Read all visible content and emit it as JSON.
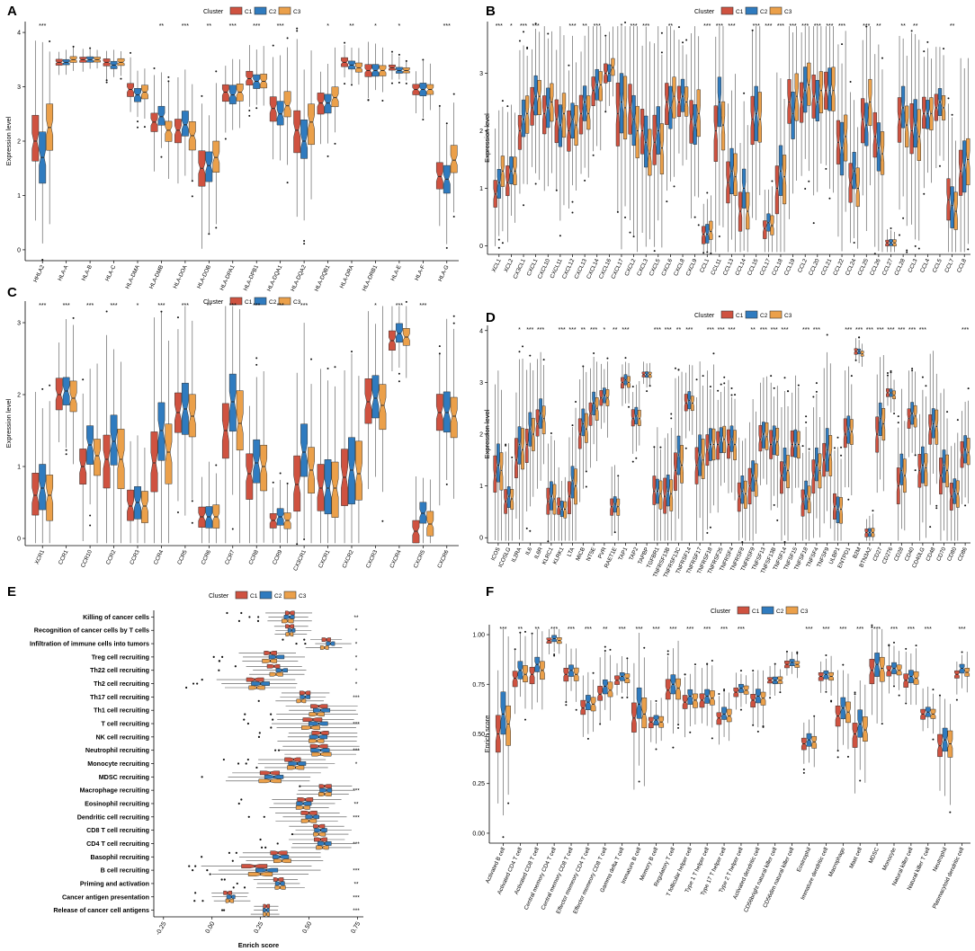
{
  "colors": {
    "C1": "#cf5240",
    "C2": "#2f7bbf",
    "C3": "#eba04a",
    "axis": "#000000",
    "whisker": "#4d4d4d",
    "outlier": "#111111"
  },
  "legend": {
    "title": "Cluster",
    "items": [
      "C1",
      "C2",
      "C3"
    ]
  },
  "chart_data": [
    {
      "letter": "A",
      "type": "boxplot",
      "orientation": "vertical",
      "ylabel": "Expression level",
      "ylim": [
        -0.2,
        4.2
      ],
      "yticks": [
        0,
        1,
        2,
        3,
        4
      ],
      "categories": [
        "HHLA2",
        "HLA-A",
        "HLA-B",
        "HLA-C",
        "HLA-DMA",
        "HLA-DMB",
        "HLA-DOA",
        "HLA-DOB",
        "HLA-DPA1",
        "HLA-DPB1",
        "HLA-DQA1",
        "HLA-DQA2",
        "HLA-DQB1",
        "HLA-DRA",
        "HLA-DRB1",
        "HLA-E",
        "HLA-F",
        "HLA-G"
      ],
      "significance": [
        "***",
        "",
        "",
        "",
        "",
        "**",
        "***",
        "**",
        "***",
        "***",
        "***",
        "",
        "*",
        "**",
        "*",
        "*",
        "",
        "***"
      ],
      "medians": {
        "C1": [
          2.0,
          3.45,
          3.5,
          3.45,
          2.95,
          2.35,
          2.2,
          1.5,
          2.9,
          3.15,
          2.6,
          2.2,
          2.7,
          3.45,
          3.3,
          3.35,
          2.95,
          1.35
        ],
        "C2": [
          1.7,
          3.45,
          3.5,
          3.4,
          2.85,
          2.45,
          2.3,
          1.55,
          2.85,
          3.1,
          2.5,
          2.0,
          2.7,
          3.4,
          3.3,
          3.3,
          2.95,
          1.3
        ],
        "C3": [
          2.25,
          3.5,
          3.5,
          3.45,
          2.9,
          2.2,
          2.1,
          1.7,
          2.9,
          3.1,
          2.65,
          2.35,
          2.8,
          3.35,
          3.3,
          3.3,
          2.95,
          1.65
        ]
      },
      "iqr": [
        0.8,
        0.1,
        0.1,
        0.12,
        0.25,
        0.35,
        0.45,
        0.55,
        0.3,
        0.25,
        0.45,
        0.7,
        0.35,
        0.15,
        0.2,
        0.1,
        0.2,
        0.5
      ]
    },
    {
      "letter": "B",
      "type": "boxplot",
      "orientation": "vertical",
      "ylabel": "Expression level",
      "ylim": [
        -0.15,
        3.9
      ],
      "yticks": [
        0,
        1,
        2,
        3
      ],
      "categories": [
        "XCL1",
        "XCL2",
        "CX3CL1",
        "CXCL1",
        "CXCL10",
        "CXCL11",
        "CXCL12",
        "CXCL13",
        "CXCL14",
        "CXCL16",
        "CXCL17",
        "CXCL2",
        "CXCL3",
        "CXCL5",
        "CXCL6",
        "CXCL8",
        "CXCL9",
        "CCL1",
        "CCL11",
        "CCL13",
        "CCL14",
        "CCL15",
        "CCL17",
        "CCL18",
        "CCL19",
        "CCL2",
        "CCL20",
        "CCL21",
        "CCL22",
        "CCL24",
        "CCL25",
        "CCL26",
        "CCL27",
        "CCL28",
        "CCL3",
        "CCL4",
        "CCL5",
        "CCL7",
        "CCL8"
      ],
      "significance": [
        "***",
        "*",
        "***",
        "***",
        "",
        "",
        "***",
        "**",
        "***",
        "",
        "*",
        "***",
        "***",
        "",
        "**",
        "",
        "",
        "***",
        "***",
        "***",
        "",
        "***",
        "***",
        "***",
        "***",
        "***",
        "***",
        "***",
        "***",
        "",
        "***",
        "**",
        "",
        "**",
        "**",
        "",
        "",
        "**",
        ""
      ],
      "medians": {
        "C1": [
          0.9,
          1.1,
          2.0,
          2.4,
          2.3,
          2.2,
          2.0,
          2.3,
          2.7,
          3.0,
          2.3,
          2.4,
          2.0,
          1.8,
          2.5,
          2.5,
          2.2,
          0.2,
          2.0,
          1.1,
          0.6,
          2.2,
          0.3,
          1.0,
          2.5,
          2.5,
          2.6,
          2.7,
          1.8,
          1.1,
          2.2,
          1.9,
          0.05,
          2.2,
          2.0,
          2.3,
          2.4,
          0.8,
          1.3
        ],
        "C2": [
          1.1,
          1.3,
          2.2,
          2.6,
          2.4,
          2.1,
          2.2,
          2.5,
          2.8,
          3.0,
          2.5,
          2.2,
          1.8,
          2.0,
          2.4,
          2.6,
          2.1,
          0.2,
          2.5,
          1.3,
          1.0,
          2.3,
          0.4,
          1.3,
          2.3,
          2.7,
          2.5,
          2.7,
          1.7,
          1.3,
          2.1,
          1.7,
          0.05,
          2.4,
          2.1,
          2.3,
          2.5,
          0.7,
          1.4
        ],
        "C3": [
          1.3,
          1.3,
          2.3,
          2.6,
          2.5,
          2.3,
          2.1,
          2.3,
          2.8,
          3.1,
          2.4,
          2.0,
          1.6,
          1.7,
          2.6,
          2.5,
          2.3,
          0.25,
          2.1,
          1.2,
          0.6,
          2.2,
          0.35,
          1.2,
          2.6,
          2.8,
          2.7,
          2.7,
          1.9,
          1.0,
          2.5,
          1.6,
          0.05,
          2.1,
          1.9,
          2.3,
          2.4,
          0.6,
          1.5
        ]
      },
      "iqr": [
        0.5,
        0.5,
        0.6,
        0.6,
        0.6,
        0.7,
        0.6,
        0.6,
        0.5,
        0.3,
        1.0,
        0.8,
        0.8,
        0.8,
        0.7,
        0.5,
        0.7,
        0.3,
        0.9,
        0.7,
        0.6,
        0.8,
        0.3,
        0.8,
        0.8,
        0.7,
        0.7,
        0.7,
        0.8,
        0.6,
        0.8,
        0.8,
        0.1,
        0.7,
        0.8,
        0.5,
        0.4,
        0.7,
        0.8
      ]
    },
    {
      "letter": "C",
      "type": "boxplot",
      "orientation": "vertical",
      "ylabel": "Expression level",
      "ylim": [
        -0.1,
        3.3
      ],
      "yticks": [
        0,
        1,
        2,
        3
      ],
      "categories": [
        "XCR1",
        "CCR1",
        "CCR10",
        "CCR2",
        "CCR3",
        "CCR4",
        "CCR5",
        "CCR6",
        "CCR7",
        "CCR8",
        "CCR9",
        "CX3CR1",
        "CXCR1",
        "CXCR2",
        "CXCR3",
        "CXCR4",
        "CXCR5",
        "CXCR6"
      ],
      "significance": [
        "***",
        "***",
        "***",
        "***",
        "*",
        "***",
        "***",
        "**",
        "***",
        "***",
        "***",
        "***",
        "",
        "",
        "*",
        "***",
        "***",
        ""
      ],
      "medians": {
        "C1": [
          0.6,
          2.0,
          1.0,
          1.1,
          0.45,
          1.05,
          1.75,
          0.3,
          1.5,
          0.9,
          0.25,
          0.75,
          0.7,
          0.85,
          1.9,
          2.75,
          0.1,
          1.75
        ],
        "C2": [
          0.7,
          2.05,
          1.3,
          1.35,
          0.5,
          1.5,
          1.8,
          0.3,
          1.9,
          1.05,
          0.3,
          1.2,
          0.7,
          0.95,
          1.95,
          2.85,
          0.35,
          1.75
        ],
        "C3": [
          0.6,
          1.95,
          1.15,
          1.1,
          0.45,
          1.2,
          1.7,
          0.3,
          1.6,
          1.0,
          0.25,
          0.95,
          0.7,
          0.9,
          1.85,
          2.8,
          0.2,
          1.7
        ]
      },
      "iqr": [
        0.6,
        0.4,
        0.5,
        0.7,
        0.4,
        0.8,
        0.6,
        0.3,
        0.8,
        0.6,
        0.2,
        0.7,
        0.7,
        0.8,
        0.6,
        0.25,
        0.3,
        0.5
      ]
    },
    {
      "letter": "D",
      "type": "boxplot",
      "orientation": "vertical",
      "ylabel": "Expression level",
      "ylim": [
        -0.1,
        4.1
      ],
      "yticks": [
        0,
        1,
        2,
        3,
        4
      ],
      "categories": [
        "ICOS",
        "ICOSLG",
        "IL2RA",
        "IL6",
        "IL6R",
        "KLRC1",
        "KLRK1",
        "LTA",
        "MICB",
        "NT5E",
        "PVR",
        "RAET1E",
        "TAP1",
        "TAP2",
        "TAPBP",
        "TGFBR1",
        "TNFRSF13B",
        "TNFRSF13C",
        "TNFRSF14",
        "TNFRSF17",
        "TNFRSF18",
        "TNFRSF25",
        "TNFRSF4",
        "TNFRSF8",
        "TNFRSF9",
        "TNFSF13",
        "TNFSF13B",
        "TNFSF14",
        "TNFSF15",
        "TNFSF18",
        "TNFSF4",
        "TNFSF9",
        "ULBP1",
        "ENTPD1",
        "B2M",
        "BTN3A2",
        "CD27",
        "CD276",
        "CD28",
        "CD40",
        "CD40LG",
        "CD48",
        "CD70",
        "CD80",
        "CD86"
      ],
      "significance": [
        "",
        "",
        "*",
        "***",
        "***",
        "",
        "***",
        "***",
        "**",
        "***",
        "*",
        "**",
        "***",
        "",
        "",
        "***",
        "***",
        "**",
        "***",
        "",
        "***",
        "***",
        "***",
        "",
        "**",
        "***",
        "***",
        "***",
        "",
        "***",
        "***",
        "",
        "",
        "***",
        "***",
        "***",
        "***",
        "***",
        "***",
        "***",
        "***",
        "",
        "",
        "",
        "***"
      ],
      "medians": {
        "C1": [
          1.2,
          0.7,
          1.5,
          1.8,
          2.2,
          0.7,
          0.6,
          0.8,
          2.0,
          2.4,
          2.7,
          0.6,
          3.0,
          2.3,
          3.15,
          0.9,
          0.8,
          1.3,
          2.6,
          1.4,
          1.7,
          1.8,
          1.8,
          0.8,
          1.0,
          1.9,
          1.8,
          1.2,
          1.8,
          0.7,
          1.2,
          1.5,
          0.6,
          2.0,
          3.6,
          0.1,
          2.0,
          2.8,
          1.0,
          2.3,
          1.3,
          2.1,
          1.2,
          0.8,
          1.6
        ],
        "C2": [
          1.4,
          0.8,
          1.8,
          2.1,
          2.4,
          0.8,
          0.55,
          1.1,
          2.2,
          2.6,
          2.75,
          0.65,
          3.05,
          2.35,
          3.15,
          0.9,
          0.9,
          1.6,
          2.65,
          1.6,
          1.8,
          1.9,
          1.9,
          0.9,
          1.2,
          2.0,
          1.9,
          1.4,
          1.8,
          0.8,
          1.4,
          1.7,
          0.55,
          2.1,
          3.6,
          0.1,
          2.3,
          2.8,
          1.3,
          2.4,
          1.4,
          2.2,
          1.4,
          0.9,
          1.7
        ],
        "C3": [
          1.3,
          0.75,
          1.7,
          2.0,
          2.3,
          0.75,
          0.55,
          1.0,
          2.1,
          2.5,
          2.7,
          0.6,
          3.0,
          2.3,
          3.15,
          0.85,
          0.85,
          1.4,
          2.6,
          1.5,
          1.8,
          1.9,
          1.8,
          0.85,
          1.1,
          1.95,
          1.85,
          1.3,
          1.8,
          0.75,
          1.3,
          1.6,
          0.55,
          2.05,
          3.55,
          0.1,
          2.2,
          2.75,
          1.2,
          2.35,
          1.35,
          2.15,
          1.3,
          0.85,
          1.65
        ]
      },
      "iqr": [
        0.7,
        0.4,
        0.7,
        0.6,
        0.5,
        0.5,
        0.3,
        0.6,
        0.5,
        0.4,
        0.3,
        0.3,
        0.2,
        0.3,
        0.1,
        0.5,
        0.6,
        0.7,
        0.3,
        0.7,
        0.6,
        0.5,
        0.5,
        0.5,
        0.6,
        0.5,
        0.5,
        0.6,
        0.5,
        0.5,
        0.6,
        0.7,
        0.5,
        0.5,
        0.1,
        0.15,
        0.6,
        0.15,
        0.6,
        0.4,
        0.6,
        0.6,
        0.6,
        0.5,
        0.5
      ]
    },
    {
      "letter": "E",
      "type": "boxplot",
      "orientation": "horizontal",
      "xlabel": "Enrich score",
      "xlim": [
        -0.3,
        0.78
      ],
      "xticks": [
        -0.25,
        0,
        0.25,
        0.5,
        0.75
      ],
      "xtick_labels": [
        "-0.25",
        "0.00",
        "0.25",
        "0.50",
        "0.75"
      ],
      "categories": [
        "Killing of cancer cells",
        "Recognition of cancer cells by T cells",
        "Infiltration of immune cells into tumors",
        "Treg cell recruiting",
        "Th22 cell recruiting",
        "Th2 cell recruiting",
        "Th17 cell recruiting",
        "Th1 cell recruiting",
        "T cell recruiting",
        "NK cell recruiting",
        "Neutrophil recruiting",
        "Monocyte recruiting",
        "MDSC recruiting",
        "Macrophage recruiting",
        "Eosinophil recruiting",
        "Dendritic cell recruiting",
        "CD8 T cell recruiting",
        "CD4 T cell recruiting",
        "Basophil recruiting",
        "B cell recruiting",
        "Priming and activation",
        "Cancer antigen presentation",
        "Release of cancer cell antigens"
      ],
      "significance": [
        "**",
        "*",
        "*",
        "*",
        "*",
        "*",
        "***",
        "",
        "***",
        "",
        "***",
        "*",
        "",
        "***",
        "**",
        "***",
        "",
        "***",
        "",
        "***",
        "**",
        "***",
        "***"
      ],
      "medians": {
        "C1": [
          0.4,
          0.4,
          0.59,
          0.3,
          0.32,
          0.22,
          0.48,
          0.55,
          0.52,
          0.56,
          0.55,
          0.42,
          0.3,
          0.58,
          0.48,
          0.5,
          0.55,
          0.56,
          0.34,
          0.22,
          0.34,
          0.08,
          0.28
        ],
        "C2": [
          0.4,
          0.41,
          0.61,
          0.33,
          0.36,
          0.25,
          0.48,
          0.56,
          0.55,
          0.55,
          0.56,
          0.44,
          0.32,
          0.59,
          0.47,
          0.52,
          0.56,
          0.58,
          0.35,
          0.28,
          0.35,
          0.1,
          0.28
        ],
        "C3": [
          0.39,
          0.4,
          0.58,
          0.3,
          0.33,
          0.23,
          0.46,
          0.54,
          0.51,
          0.54,
          0.56,
          0.43,
          0.3,
          0.58,
          0.47,
          0.5,
          0.55,
          0.57,
          0.36,
          0.25,
          0.35,
          0.09,
          0.28
        ]
      },
      "iqr": [
        0.05,
        0.04,
        0.04,
        0.07,
        0.06,
        0.08,
        0.05,
        0.08,
        0.09,
        0.08,
        0.09,
        0.08,
        0.1,
        0.06,
        0.07,
        0.07,
        0.06,
        0.06,
        0.08,
        0.12,
        0.05,
        0.04,
        0.03
      ]
    },
    {
      "letter": "F",
      "type": "boxplot",
      "orientation": "vertical",
      "ylabel": "Enrich score",
      "ylim": [
        -0.05,
        1.05
      ],
      "yticks": [
        0,
        0.25,
        0.5,
        0.75,
        1.0
      ],
      "ytick_labels": [
        "0.00",
        "0.25",
        "0.50",
        "0.75",
        "1.00"
      ],
      "categories": [
        "Activated B cell",
        "Activated CD4 T cell",
        "Activated CD8 T cell",
        "Central memory CD4 T cell",
        "Central memory CD8 T cell",
        "Effector memeory CD4 T cell",
        "Effector memeory CD8 T cell",
        "Gamma delta T cell",
        "Immature  B cell",
        "Memory B cell",
        "Regulatory T cell",
        "T follicular helper cell",
        "Type 1 T helper cell",
        "Type 17 T helper cell",
        "Type 2 T helper cell",
        "Activated dendritic cell",
        "CD56bright natural killer cell",
        "CD56dim natural killer cell",
        "Eosinophil",
        "Immature dendritic cell",
        "Macrophage",
        "Mast cell",
        "MDSC",
        "Monocyte",
        "Natural killer cell",
        "Natural killer T cell",
        "Neutrophil",
        "Plasmacytoid dendritic cell"
      ],
      "significance": [
        "***",
        "**",
        "**",
        "***",
        "***",
        "***",
        "**",
        "***",
        "***",
        "***",
        "***",
        "***",
        "***",
        "***",
        "***",
        "",
        "",
        "",
        "***",
        "***",
        "***",
        "***",
        "***",
        "***",
        "***",
        "***",
        "",
        "***"
      ],
      "medians": {
        "C1": [
          0.5,
          0.78,
          0.8,
          0.97,
          0.8,
          0.63,
          0.7,
          0.77,
          0.58,
          0.56,
          0.72,
          0.66,
          0.67,
          0.58,
          0.71,
          0.67,
          0.77,
          0.85,
          0.45,
          0.79,
          0.59,
          0.5,
          0.82,
          0.82,
          0.77,
          0.6,
          0.44,
          0.8
        ],
        "C2": [
          0.6,
          0.82,
          0.85,
          0.98,
          0.82,
          0.66,
          0.74,
          0.79,
          0.65,
          0.57,
          0.75,
          0.69,
          0.69,
          0.6,
          0.73,
          0.69,
          0.77,
          0.86,
          0.47,
          0.8,
          0.63,
          0.55,
          0.85,
          0.83,
          0.79,
          0.61,
          0.47,
          0.83
        ],
        "C3": [
          0.55,
          0.8,
          0.82,
          0.97,
          0.8,
          0.65,
          0.72,
          0.78,
          0.6,
          0.56,
          0.73,
          0.67,
          0.68,
          0.59,
          0.72,
          0.68,
          0.77,
          0.85,
          0.46,
          0.79,
          0.61,
          0.52,
          0.83,
          0.82,
          0.78,
          0.6,
          0.45,
          0.81
        ]
      },
      "iqr": [
        0.2,
        0.08,
        0.08,
        0.03,
        0.06,
        0.07,
        0.07,
        0.04,
        0.14,
        0.05,
        0.1,
        0.07,
        0.07,
        0.06,
        0.04,
        0.06,
        0.03,
        0.03,
        0.06,
        0.04,
        0.1,
        0.12,
        0.12,
        0.05,
        0.06,
        0.05,
        0.12,
        0.04
      ]
    }
  ]
}
